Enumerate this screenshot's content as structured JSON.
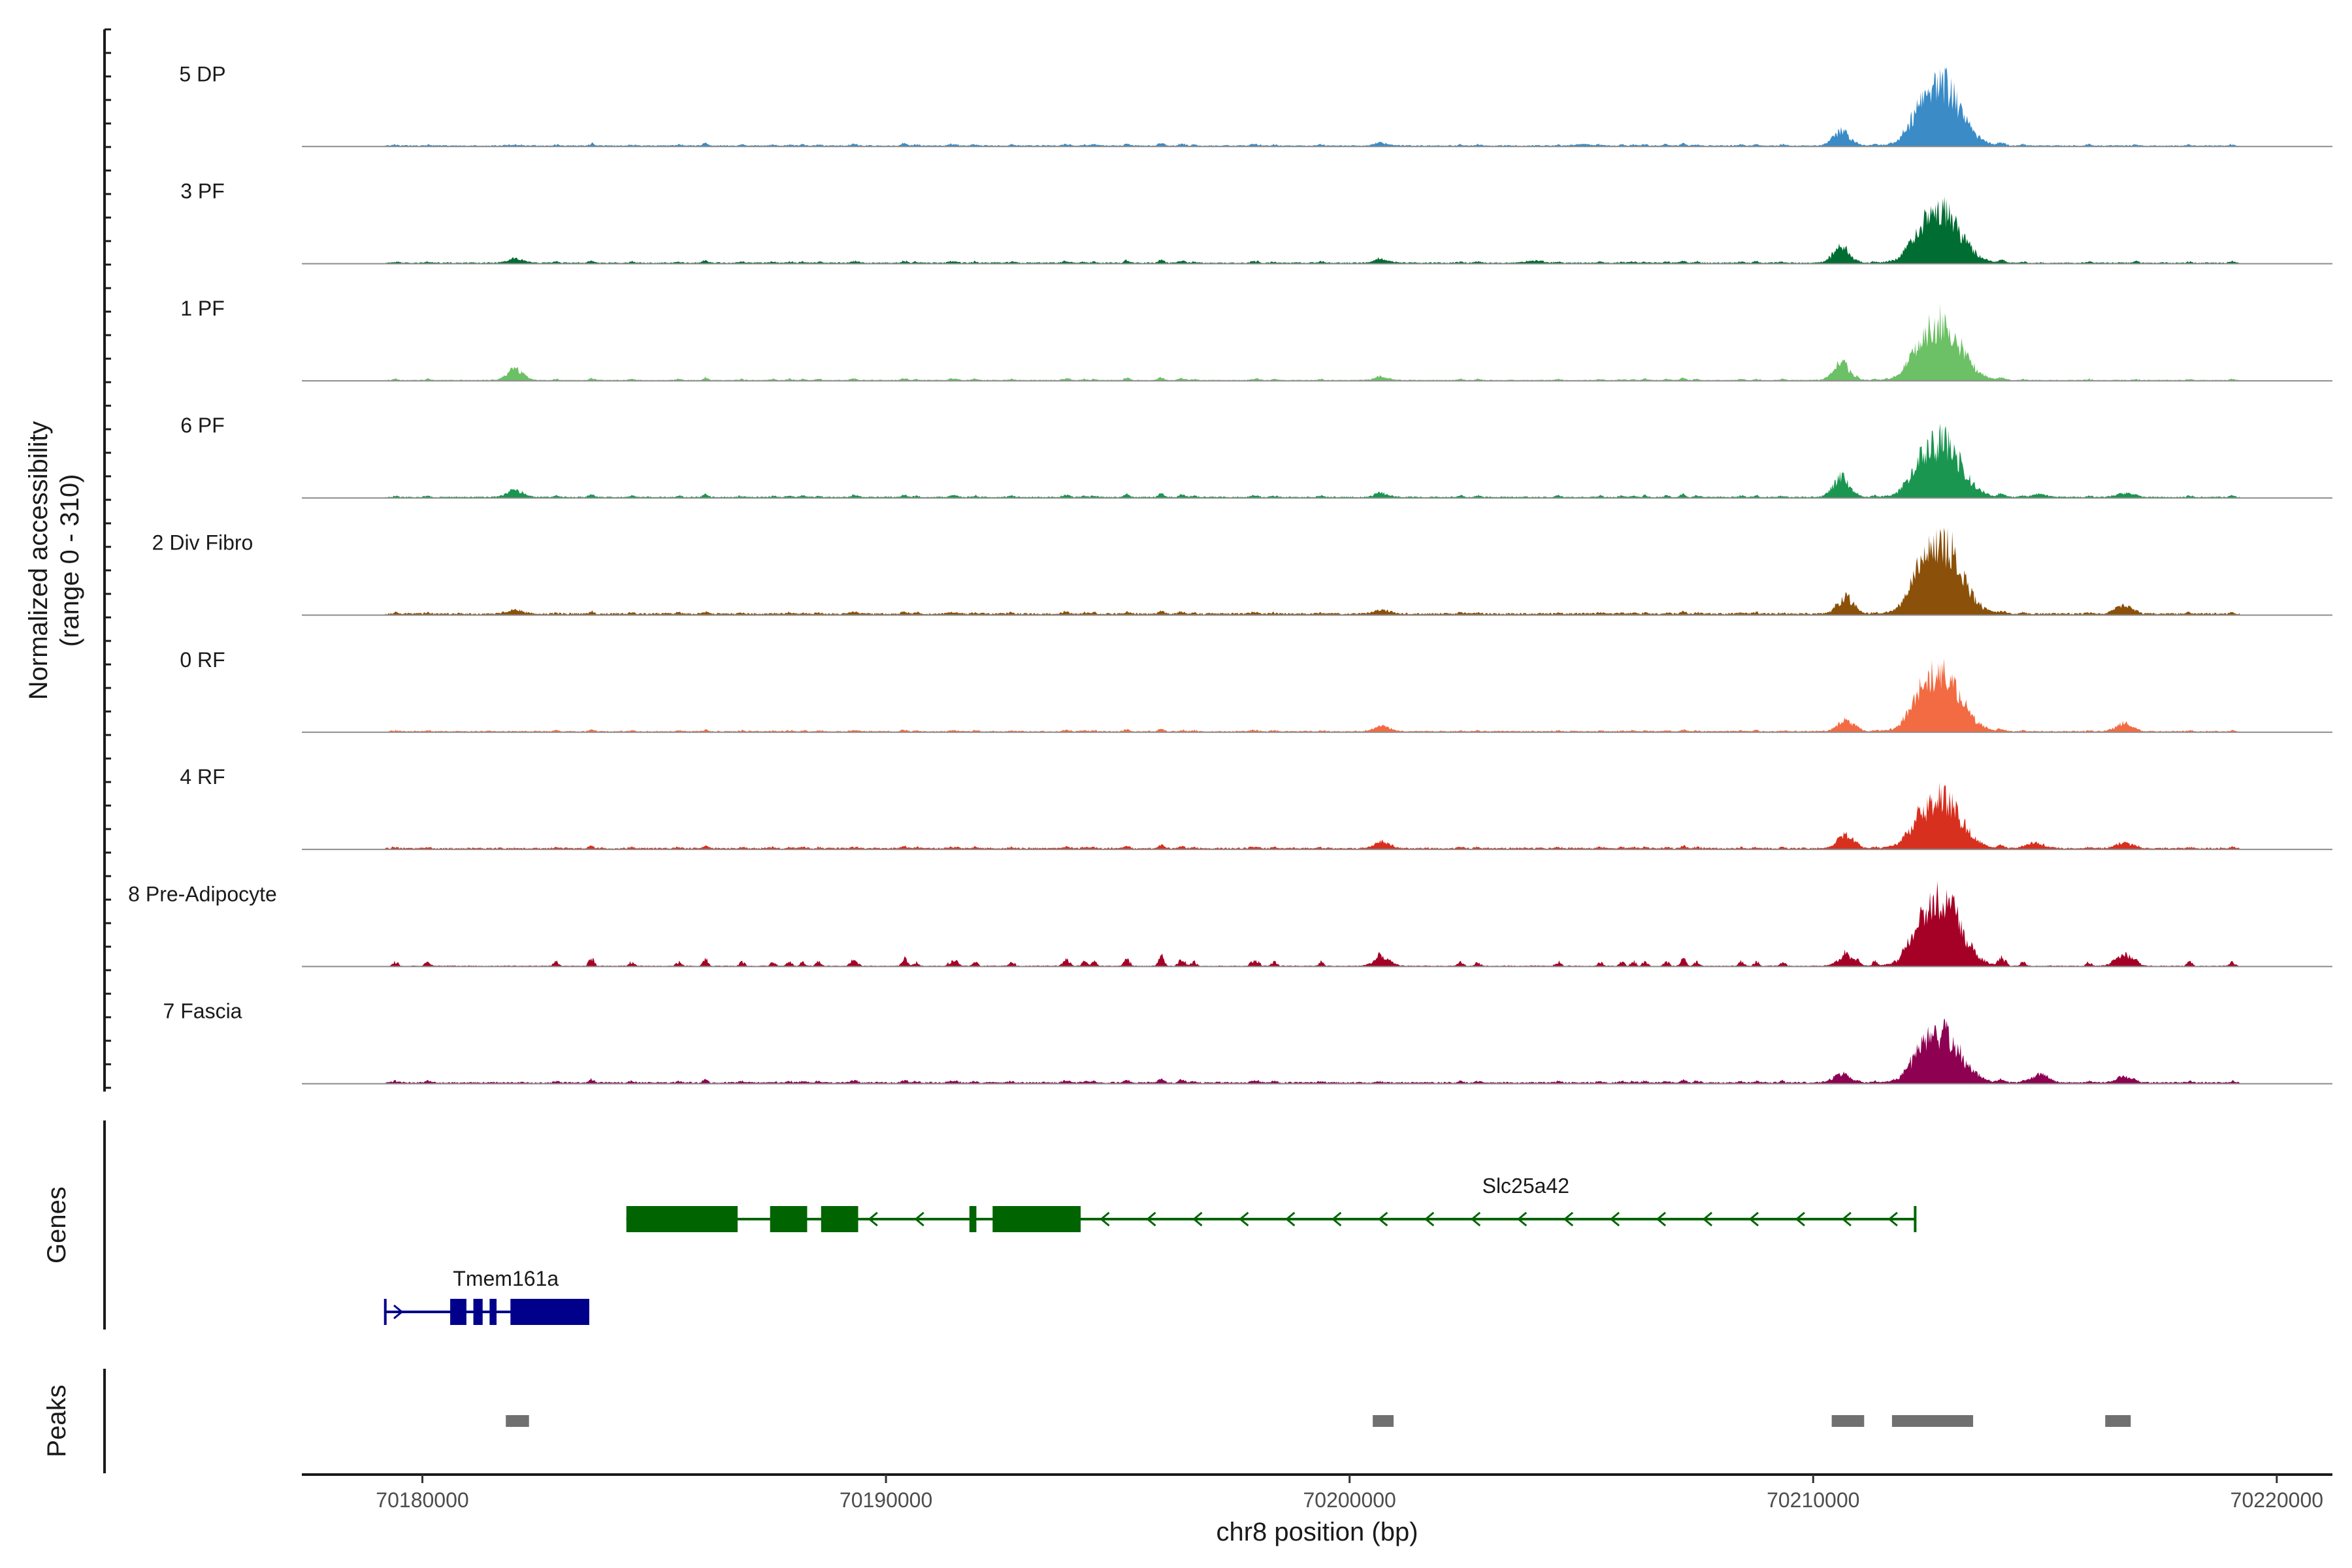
{
  "chart_data": {
    "type": "area",
    "title": "",
    "ylabel_line1": "Normalized accessibility",
    "ylabel_line2": "(range 0 - 310)",
    "ylim": [
      0,
      310
    ],
    "xlabel": "chr8 position (bp)",
    "xlim": [
      70177400,
      70221200
    ],
    "xticks": [
      70180000,
      70190000,
      70200000,
      70210000,
      70220000
    ],
    "xtick_labels": [
      "70180000",
      "70190000",
      "70200000",
      "70210000",
      "70220000"
    ],
    "region": [
      70179200,
      70219200
    ],
    "tracks": [
      {
        "name": "5 DP",
        "color": "#3a8bc6",
        "baseline": 4,
        "noise": 4,
        "peaks": [
          [
            70182000,
            3
          ],
          [
            70200700,
            7
          ],
          [
            70205000,
            5
          ],
          [
            70210600,
            48
          ],
          [
            70212750,
            210
          ]
        ]
      },
      {
        "name": "3 PF",
        "color": "#006d32",
        "baseline": 4,
        "noise": 4,
        "peaks": [
          [
            70182000,
            14
          ],
          [
            70200700,
            12
          ],
          [
            70204000,
            8
          ],
          [
            70210600,
            55
          ],
          [
            70212750,
            175
          ]
        ]
      },
      {
        "name": "1 PF",
        "color": "#6cc065",
        "baseline": 3,
        "noise": 4,
        "peaks": [
          [
            70182000,
            38
          ],
          [
            70200700,
            10
          ],
          [
            70210600,
            60
          ],
          [
            70212750,
            200
          ]
        ]
      },
      {
        "name": "6 PF",
        "color": "#1a9650",
        "baseline": 4,
        "noise": 5,
        "peaks": [
          [
            70182000,
            25
          ],
          [
            70200700,
            12
          ],
          [
            70210600,
            65
          ],
          [
            70212750,
            190
          ],
          [
            70214900,
            10
          ],
          [
            70216700,
            14
          ]
        ]
      },
      {
        "name": "2 Div Fibro",
        "color": "#8b510a",
        "baseline": 6,
        "noise": 4,
        "peaks": [
          [
            70182000,
            12
          ],
          [
            70200700,
            12
          ],
          [
            70210700,
            55
          ],
          [
            70212750,
            250
          ],
          [
            70216700,
            30
          ]
        ]
      },
      {
        "name": "0 RF",
        "color": "#f26b43",
        "baseline": 4,
        "noise": 3,
        "peaks": [
          [
            70200700,
            18
          ],
          [
            70210700,
            40
          ],
          [
            70212750,
            200
          ],
          [
            70216700,
            28
          ]
        ]
      },
      {
        "name": "4 RF",
        "color": "#d7301f",
        "baseline": 5,
        "noise": 4,
        "peaks": [
          [
            70200700,
            22
          ],
          [
            70210700,
            45
          ],
          [
            70212750,
            170
          ],
          [
            70214800,
            20
          ],
          [
            70216700,
            20
          ]
        ]
      },
      {
        "name": "8 Pre-Adipocyte",
        "color": "#a50026",
        "baseline": 3,
        "noise": 14,
        "peaks": [
          [
            70200700,
            28
          ],
          [
            70210700,
            30
          ],
          [
            70212750,
            220
          ],
          [
            70216700,
            40
          ]
        ]
      },
      {
        "name": "7 Fascia",
        "color": "#8e0152",
        "baseline": 5,
        "noise": 5,
        "peaks": [
          [
            70210600,
            28
          ],
          [
            70212750,
            170
          ],
          [
            70214900,
            30
          ],
          [
            70216700,
            20
          ]
        ]
      }
    ],
    "genes_title": "Genes",
    "genes": [
      {
        "name": "Slc25a42",
        "color": "#006400",
        "strand": "-",
        "start": 70184400,
        "end": 70212200,
        "exons": [
          [
            70184400,
            70186800
          ],
          [
            70187500,
            70188300
          ],
          [
            70188600,
            70189400
          ],
          [
            70191800,
            70191950
          ],
          [
            70192300,
            70194200
          ]
        ]
      },
      {
        "name": "Tmem161a",
        "color": "#00008b",
        "strand": "+",
        "start": 70179200,
        "end": 70183600,
        "exons": [
          [
            70180600,
            70180950
          ],
          [
            70181100,
            70181300
          ],
          [
            70181450,
            70181600
          ],
          [
            70181900,
            70183600
          ]
        ]
      }
    ],
    "peaks_title": "Peaks",
    "peaks_color": "#707070",
    "peak_regions": [
      [
        70181800,
        70182300
      ],
      [
        70200500,
        70200950
      ],
      [
        70210400,
        70211100
      ],
      [
        70211700,
        70213450
      ],
      [
        70216300,
        70216850
      ]
    ]
  }
}
